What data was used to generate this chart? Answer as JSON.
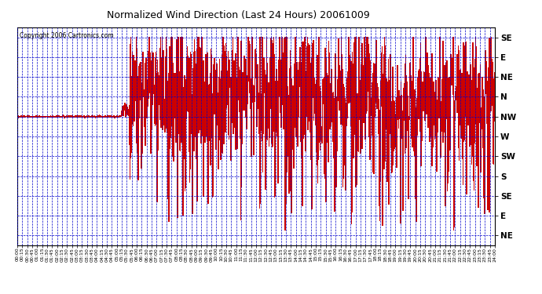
{
  "title": "Normalized Wind Direction (Last 24 Hours) 20061009",
  "copyright": "Copyright 2006 Cartronics.com",
  "ytick_labels": [
    "SE",
    "E",
    "NE",
    "N",
    "NW",
    "W",
    "SW",
    "S",
    "SE",
    "E",
    "NE"
  ],
  "ytick_values": [
    10,
    9,
    8,
    7,
    6,
    5,
    4,
    3,
    2,
    1,
    0
  ],
  "ylim": [
    -0.5,
    10.5
  ],
  "bg_color": "#ffffff",
  "plot_bg_color": "#ffffff",
  "line_color": "#cc0000",
  "grid_color": "#0000cc",
  "border_color": "#000000",
  "title_color": "#000000",
  "copyright_color": "#000000",
  "total_minutes": 1440,
  "seed": 42
}
